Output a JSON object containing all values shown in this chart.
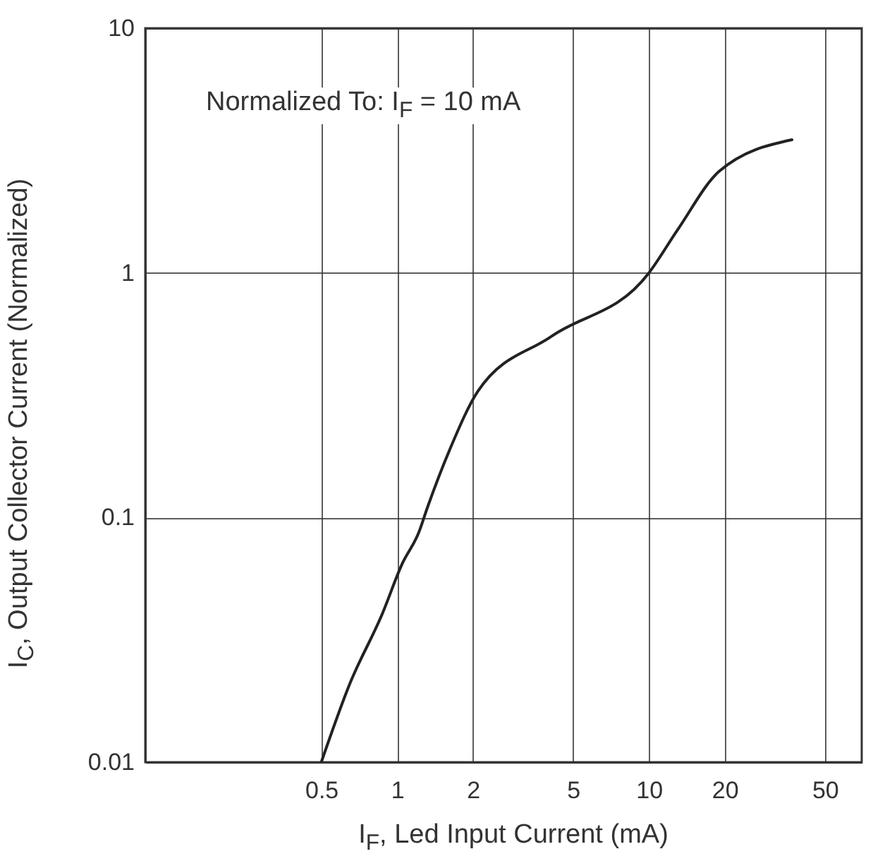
{
  "chart_data": {
    "type": "line",
    "xlabel": "I$_{F}$, Led Input Current (mA)",
    "ylabel": "I$_{C}$, Output Collector Current (Normalized)",
    "annotations": [
      "Normalized To: I$_{F}$ = 10 mA"
    ],
    "log": "xy",
    "grid": true,
    "marker": "none",
    "line_style": "solid",
    "xlim": [
      0.1,
      70
    ],
    "xticks": [
      0.5,
      1,
      2,
      5,
      10,
      20,
      50
    ],
    "ylim": [
      0.01,
      10
    ],
    "yticks": [
      0.01,
      0.1,
      1,
      10
    ],
    "series": [
      {
        "color": "#222222",
        "x": [
          0.5,
          0.65,
          0.87,
          1.05,
          1.22,
          1.32,
          1.62,
          2.1,
          4.1,
          10,
          13,
          19,
          37
        ],
        "values": [
          0.01,
          0.021,
          0.04,
          0.065,
          0.087,
          0.11,
          0.19,
          0.33,
          0.55,
          1,
          1.5,
          2.6,
          3.5
        ]
      }
    ]
  }
}
